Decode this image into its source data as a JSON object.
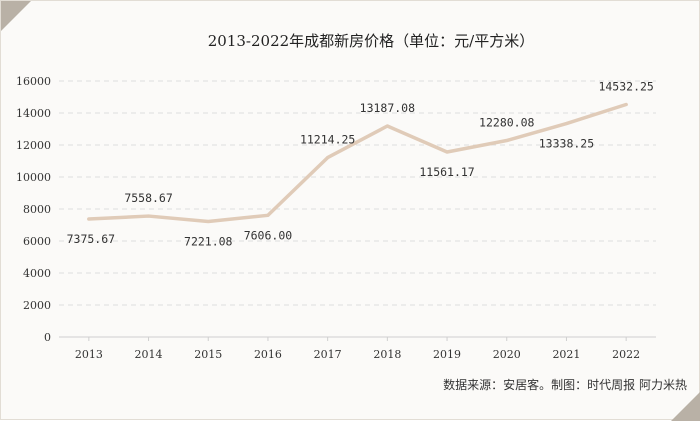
{
  "colors": {
    "line": "#e0cbb8",
    "corner": "#b9b1a6",
    "grid": "#dedede"
  },
  "chart_data": {
    "type": "line",
    "title": "2013-2022年成都新房价格（单位：元/平方米）",
    "xlabel": "",
    "ylabel": "",
    "categories": [
      "2013",
      "2014",
      "2015",
      "2016",
      "2017",
      "2018",
      "2019",
      "2020",
      "2021",
      "2022"
    ],
    "series": [
      {
        "values": [
          7375.67,
          7558.67,
          7221.08,
          7606.0,
          11214.25,
          13187.08,
          11561.17,
          12280.08,
          13338.25,
          14532.25
        ],
        "labels": [
          "7375.67",
          "7558.67",
          "7221.08",
          "7606.00",
          "11214.25",
          "13187.08",
          "11561.17",
          "12280.08",
          "13338.25",
          "14532.25"
        ],
        "label_positions": [
          "below",
          "above",
          "below",
          "below",
          "above",
          "above",
          "below",
          "above",
          "below",
          "above"
        ]
      }
    ],
    "ylim": [
      0,
      16000
    ],
    "yticks": [
      "0",
      "2000",
      "4000",
      "6000",
      "8000",
      "10000",
      "12000",
      "14000",
      "16000"
    ],
    "grid": "horizontal-dashed",
    "legend": "none",
    "source": "数据来源：安居客。制图：时代周报 阿力米热"
  }
}
